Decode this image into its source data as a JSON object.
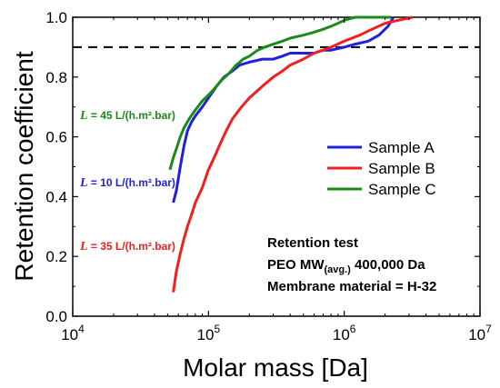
{
  "chart_data": {
    "type": "line",
    "xlabel": "Molar mass [Da]",
    "ylabel": "Retention coefficient",
    "xscale": "log",
    "xlim": [
      10000,
      10000000
    ],
    "ylim": [
      0.0,
      1.0
    ],
    "x_ticks": [
      {
        "value": 10000,
        "base": "10",
        "exp": "4"
      },
      {
        "value": 100000,
        "base": "10",
        "exp": "5"
      },
      {
        "value": 1000000,
        "base": "10",
        "exp": "6"
      },
      {
        "value": 10000000,
        "base": "10",
        "exp": "7"
      }
    ],
    "y_ticks": [
      "0.0",
      "0.2",
      "0.4",
      "0.6",
      "0.8",
      "1.0"
    ],
    "reference_line": {
      "y": 0.9,
      "style": "dashed"
    },
    "legend_position": "right",
    "series": [
      {
        "name": "Sample A",
        "color": "#1f1fe0",
        "points": [
          [
            55000,
            0.38
          ],
          [
            58000,
            0.42
          ],
          [
            62000,
            0.5
          ],
          [
            66000,
            0.57
          ],
          [
            70000,
            0.62
          ],
          [
            75000,
            0.65
          ],
          [
            80000,
            0.67
          ],
          [
            90000,
            0.7
          ],
          [
            100000,
            0.73
          ],
          [
            115000,
            0.77
          ],
          [
            130000,
            0.8
          ],
          [
            150000,
            0.82
          ],
          [
            170000,
            0.84
          ],
          [
            200000,
            0.85
          ],
          [
            250000,
            0.86
          ],
          [
            300000,
            0.86
          ],
          [
            350000,
            0.87
          ],
          [
            400000,
            0.88
          ],
          [
            500000,
            0.88
          ],
          [
            600000,
            0.88
          ],
          [
            700000,
            0.89
          ],
          [
            800000,
            0.89
          ],
          [
            1000000,
            0.9
          ],
          [
            1200000,
            0.91
          ],
          [
            1500000,
            0.92
          ],
          [
            1800000,
            0.94
          ],
          [
            2100000,
            0.97
          ],
          [
            2300000,
            1.0
          ]
        ]
      },
      {
        "name": "Sample B",
        "color": "#f02020",
        "points": [
          [
            55000,
            0.08
          ],
          [
            58000,
            0.15
          ],
          [
            62000,
            0.21
          ],
          [
            66000,
            0.26
          ],
          [
            70000,
            0.3
          ],
          [
            75000,
            0.34
          ],
          [
            80000,
            0.38
          ],
          [
            90000,
            0.43
          ],
          [
            100000,
            0.49
          ],
          [
            110000,
            0.53
          ],
          [
            120000,
            0.57
          ],
          [
            135000,
            0.62
          ],
          [
            150000,
            0.66
          ],
          [
            175000,
            0.7
          ],
          [
            200000,
            0.73
          ],
          [
            250000,
            0.77
          ],
          [
            300000,
            0.8
          ],
          [
            350000,
            0.82
          ],
          [
            400000,
            0.84
          ],
          [
            500000,
            0.86
          ],
          [
            600000,
            0.88
          ],
          [
            700000,
            0.89
          ],
          [
            800000,
            0.9
          ],
          [
            1000000,
            0.92
          ],
          [
            1300000,
            0.94
          ],
          [
            1600000,
            0.96
          ],
          [
            2000000,
            0.98
          ],
          [
            2500000,
            0.99
          ],
          [
            3200000,
            1.0
          ]
        ]
      },
      {
        "name": "Sample C",
        "color": "#1a8a1a",
        "points": [
          [
            52000,
            0.49
          ],
          [
            55000,
            0.53
          ],
          [
            58000,
            0.56
          ],
          [
            62000,
            0.6
          ],
          [
            66000,
            0.63
          ],
          [
            72000,
            0.66
          ],
          [
            80000,
            0.69
          ],
          [
            90000,
            0.72
          ],
          [
            100000,
            0.74
          ],
          [
            110000,
            0.76
          ],
          [
            125000,
            0.79
          ],
          [
            140000,
            0.81
          ],
          [
            160000,
            0.84
          ],
          [
            180000,
            0.86
          ],
          [
            200000,
            0.87
          ],
          [
            230000,
            0.89
          ],
          [
            260000,
            0.9
          ],
          [
            300000,
            0.91
          ],
          [
            350000,
            0.92
          ],
          [
            400000,
            0.93
          ],
          [
            500000,
            0.94
          ],
          [
            600000,
            0.95
          ],
          [
            700000,
            0.96
          ],
          [
            800000,
            0.97
          ],
          [
            900000,
            0.98
          ],
          [
            1000000,
            0.99
          ],
          [
            1200000,
            1.0
          ],
          [
            2200000,
            1.0
          ]
        ]
      }
    ],
    "flux_annotations": [
      {
        "var": "L",
        "text": " = 45 L/(h.m².bar)",
        "color": "#1a8a1a"
      },
      {
        "var": "L",
        "text": " = 10 L/(h.m².bar)",
        "color": "#1f1fe0"
      },
      {
        "var": "L",
        "text": " = 35 L/(h.m².bar)",
        "color": "#f02020"
      }
    ],
    "notes": {
      "line1": "Retention test",
      "line2_main": "PEO MW",
      "line2_sub": "(avg.)",
      "line2_tail": " 400,000 Da",
      "line3": "Membrane material = H-32"
    }
  }
}
